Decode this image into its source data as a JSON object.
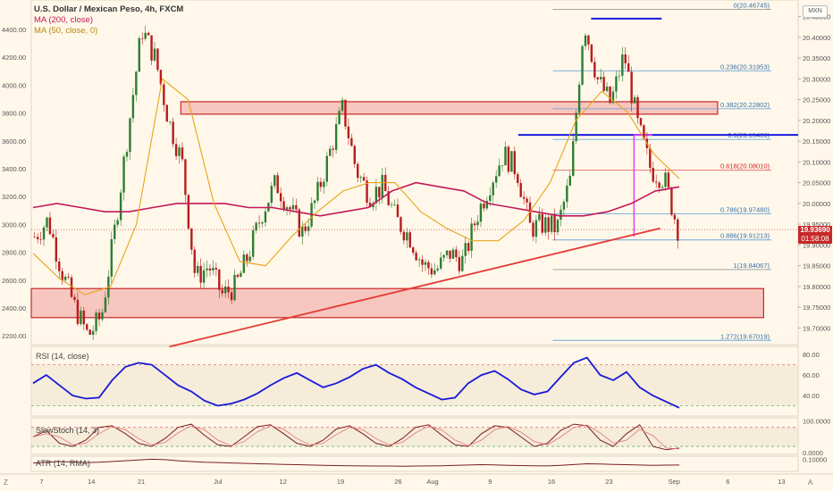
{
  "header": {
    "title": "U.S. Dollar / Mexican Peso, 4h, FXCM",
    "ma200": "MA (200, close)",
    "ma50": "MA (50, close, 0)",
    "currency_badge": "MXN"
  },
  "price_tag": {
    "price": "19.93690",
    "countdown": "01:58:08"
  },
  "colors": {
    "background": "#fff8ea",
    "candle_green": "#2e7d32",
    "candle_red": "#b71c1c",
    "ma200": "#c2185b",
    "ma50": "#e8a317",
    "zone_fill": "#f3b6b0",
    "zone_border": "#c62828",
    "trend_red": "#e53935",
    "level_blue": "#1a1ae0",
    "magenta": "#e040fb",
    "fib_blue": "#6fa8dc",
    "fib_red": "#e57373",
    "rsi_line": "#1a1ad6"
  },
  "chart_data": [
    {
      "type": "candlestick",
      "symbol": "USDMXN",
      "title": "U.S. Dollar / Mexican Peso, 4h, FXCM",
      "left_axis_ticks": [
        "4400.00",
        "4200.00",
        "4000.00",
        "3800.00",
        "3600.00",
        "3400.00",
        "3200.00",
        "3000.00",
        "2800.00",
        "2600.00",
        "2400.00",
        "2200.00"
      ],
      "right_axis_ticks": [
        "20.45000",
        "20.40000",
        "20.35000",
        "20.30000",
        "20.25000",
        "20.20000",
        "20.15000",
        "20.10000",
        "20.05000",
        "20.00000",
        "19.95000",
        "19.90000",
        "19.85000",
        "19.80000",
        "19.75000",
        "19.70000"
      ],
      "ylim": [
        19.66,
        20.49
      ],
      "x_ticks": [
        "7",
        "14",
        "21",
        "Jul",
        "12",
        "19",
        "26",
        "Aug",
        "9",
        "16",
        "23",
        "Sep",
        "6",
        "13"
      ],
      "closes": [
        19.92,
        19.96,
        19.84,
        19.75,
        19.68,
        19.73,
        19.94,
        20.18,
        20.42,
        20.35,
        20.2,
        20.1,
        19.82,
        19.85,
        19.78,
        19.8,
        19.88,
        19.98,
        20.05,
        19.99,
        19.93,
        20.01,
        20.12,
        20.23,
        20.08,
        20.02,
        20.04,
        19.96,
        19.92,
        19.85,
        19.84,
        19.88,
        19.86,
        19.97,
        20.05,
        20.12,
        20.08,
        19.94,
        19.95,
        19.94,
        20.06,
        20.44,
        20.3,
        20.24,
        20.36,
        20.19,
        20.08,
        20.06,
        19.94
      ],
      "fib_levels": [
        {
          "ratio": "0",
          "label": "0(20.46745)",
          "price": 20.46745
        },
        {
          "ratio": "0.236",
          "label": "0.236(20.31953)",
          "price": 20.31953
        },
        {
          "ratio": "0.382",
          "label": "0.382(20.22802)",
          "price": 20.22802
        },
        {
          "ratio": "0.5",
          "label": "0.5(20.15406)",
          "price": 20.15406
        },
        {
          "ratio": "0.618",
          "label": "0.618(20.08010)",
          "price": 20.0801
        },
        {
          "ratio": "0.786",
          "label": "0.786(19.97480)",
          "price": 19.9748
        },
        {
          "ratio": "0.886",
          "label": "0.886(19.91213)",
          "price": 19.91213
        },
        {
          "ratio": "1",
          "label": "1(19.84067)",
          "price": 19.84067
        },
        {
          "ratio": "1.272",
          "label": "1.272(19.67019)",
          "price": 19.67019
        }
      ],
      "zones": [
        [
          20.215,
          20.245
        ],
        [
          19.725,
          19.795
        ]
      ],
      "horizontal_levels": [
        20.165,
        20.445
      ],
      "trendline": {
        "from": [
          0.18,
          19.655
        ],
        "to": [
          0.82,
          19.94
        ]
      },
      "ma200_closes": [
        19.99,
        20.0,
        19.99,
        19.98,
        19.98,
        19.99,
        20.0,
        20.0,
        20.0,
        19.99,
        19.99,
        19.98,
        19.97,
        19.98,
        19.99,
        20.03,
        20.05,
        20.04,
        20.03,
        20.0,
        19.99,
        19.98,
        19.97,
        19.97,
        19.98,
        20.0,
        20.03,
        20.04
      ],
      "ma50_closes": [
        19.88,
        19.82,
        19.78,
        19.8,
        19.95,
        20.3,
        20.25,
        20.0,
        19.86,
        19.85,
        19.92,
        19.98,
        20.03,
        20.05,
        20.05,
        19.98,
        19.94,
        19.91,
        19.91,
        19.96,
        20.05,
        20.2,
        20.27,
        20.22,
        20.12,
        20.06
      ],
      "last_price": 19.9369
    },
    {
      "type": "line",
      "name": "RSI (14, close)",
      "ticks": [
        "80.00",
        "60.00",
        "40.00"
      ],
      "ylim": [
        20,
        88
      ],
      "bands": [
        70,
        30
      ],
      "values": [
        52,
        60,
        50,
        40,
        37,
        38,
        55,
        68,
        72,
        70,
        60,
        50,
        44,
        35,
        30,
        32,
        36,
        42,
        50,
        57,
        62,
        55,
        48,
        52,
        58,
        66,
        70,
        62,
        56,
        48,
        42,
        36,
        38,
        52,
        60,
        64,
        56,
        46,
        41,
        44,
        58,
        72,
        77,
        60,
        55,
        63,
        48,
        40,
        34,
        28
      ]
    },
    {
      "type": "line",
      "name": "SlowStoch (14, 3)",
      "ticks": [
        "100.0000",
        "0.0000"
      ],
      "ylim": [
        -5,
        110
      ],
      "bands": [
        80,
        20
      ],
      "values": [
        50,
        70,
        30,
        20,
        40,
        80,
        85,
        60,
        30,
        20,
        45,
        80,
        90,
        55,
        25,
        20,
        50,
        82,
        88,
        60,
        30,
        20,
        40,
        75,
        85,
        60,
        30,
        20,
        45,
        80,
        88,
        55,
        25,
        20,
        60,
        85,
        80,
        50,
        20,
        30,
        70,
        90,
        85,
        40,
        20,
        60,
        88,
        20,
        10,
        15
      ]
    },
    {
      "type": "line",
      "name": "ATR (14, RMA)",
      "ticks": [
        "0.10000"
      ],
      "ylim": [
        0.02,
        0.12
      ],
      "values": [
        0.075,
        0.08,
        0.085,
        0.082,
        0.078,
        0.08,
        0.085,
        0.09,
        0.095,
        0.1,
        0.097,
        0.09,
        0.085,
        0.08,
        0.078,
        0.075,
        0.073,
        0.07,
        0.068,
        0.066,
        0.064,
        0.062,
        0.06,
        0.058,
        0.057,
        0.056,
        0.055,
        0.055,
        0.054,
        0.055,
        0.056,
        0.057,
        0.06,
        0.062,
        0.064,
        0.063,
        0.06,
        0.058,
        0.057,
        0.056,
        0.06,
        0.065,
        0.07,
        0.068,
        0.066,
        0.064,
        0.062,
        0.06,
        0.061,
        0.062
      ]
    }
  ]
}
